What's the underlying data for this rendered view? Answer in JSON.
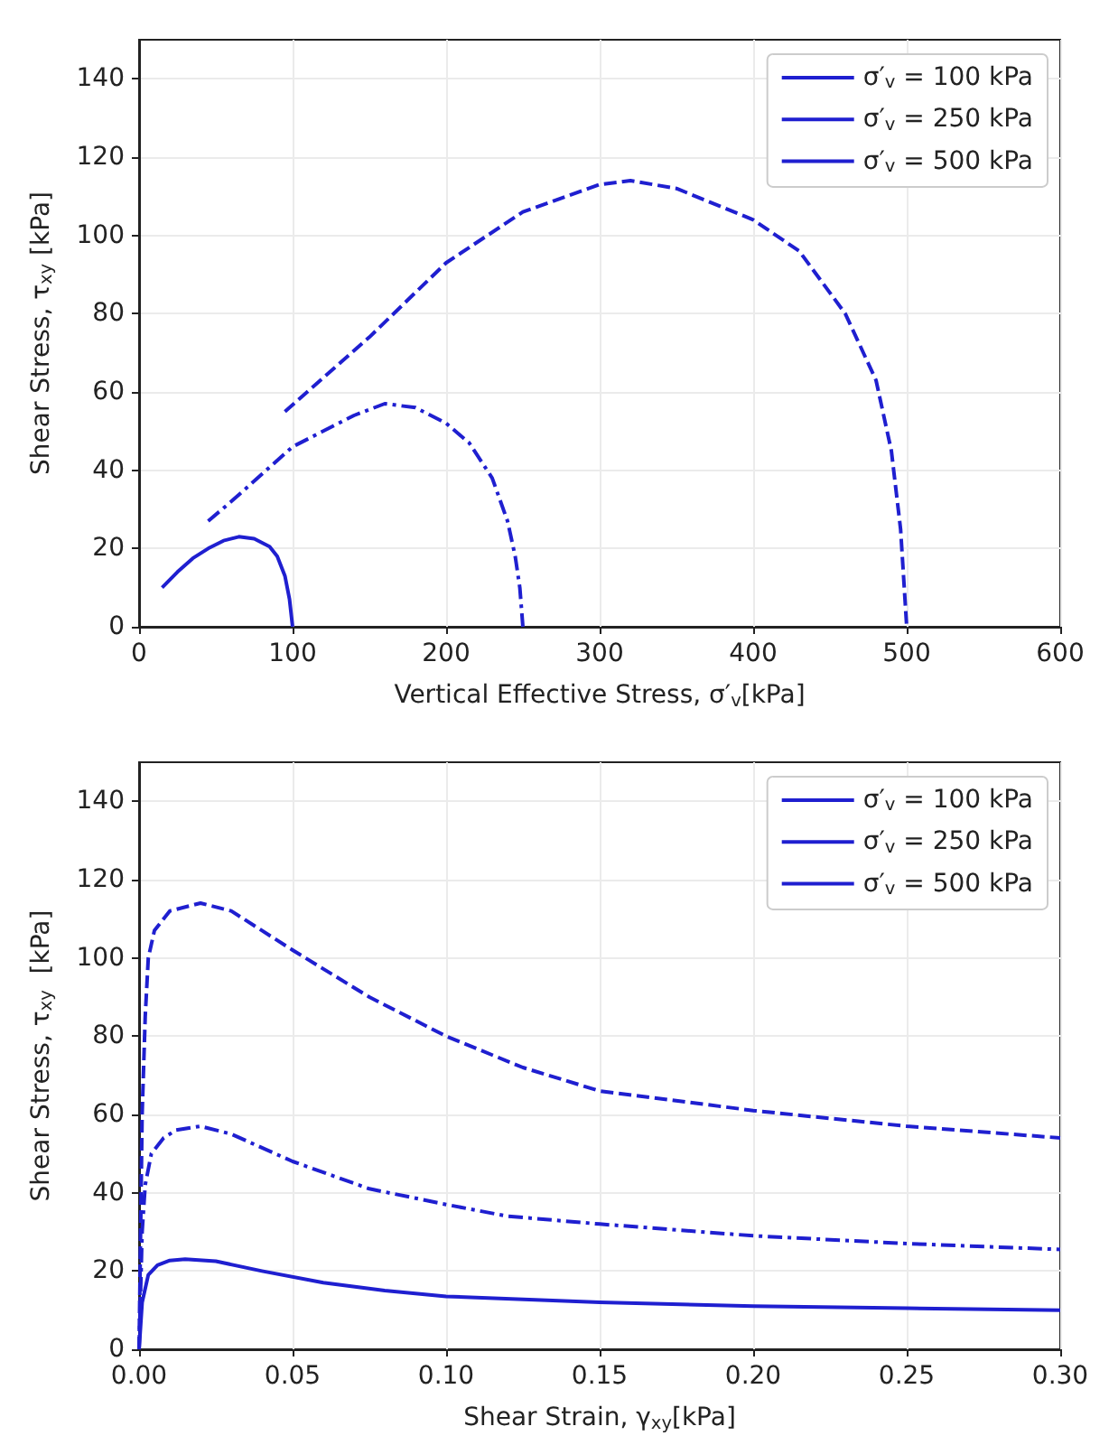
{
  "chart_data": [
    {
      "type": "line",
      "xlabel": "Vertical Effective Stress, σ′$_{v}$[kPa]",
      "ylabel": "Shear Stress, τ$_{xy}$ [kPa]",
      "xlim": [
        0,
        600
      ],
      "xticks": [
        0,
        100,
        200,
        300,
        400,
        500,
        600
      ],
      "ylim": [
        0,
        150
      ],
      "yticks": [
        0,
        20,
        40,
        60,
        80,
        100,
        120,
        140
      ],
      "grid": true,
      "legend": "top right",
      "series": [
        {
          "name": "σ′$_{v}$ = 100 kPa",
          "color": "#1f1fd0",
          "line_style": "solid",
          "x": [
            15,
            25,
            35,
            45,
            55,
            65,
            75,
            85,
            90,
            95,
            98,
            100
          ],
          "values": [
            10,
            14,
            17.5,
            20,
            22,
            23,
            22.5,
            20.5,
            18,
            13,
            7,
            0
          ]
        },
        {
          "name": "σ′$_{v}$ = 250 kPa",
          "color": "#1f1fd0",
          "line_style": "dashdot",
          "x": [
            45,
            60,
            80,
            100,
            120,
            140,
            160,
            180,
            200,
            215,
            230,
            240,
            245,
            248,
            250
          ],
          "values": [
            27,
            32,
            39,
            46,
            50,
            54,
            57,
            56,
            52,
            47,
            38,
            27,
            18,
            10,
            0
          ]
        },
        {
          "name": "σ′$_{v}$ = 500 kPa",
          "color": "#1f1fd0",
          "line_style": "dashed",
          "x": [
            95,
            150,
            200,
            250,
            300,
            320,
            350,
            400,
            430,
            460,
            480,
            490,
            496,
            500
          ],
          "values": [
            55,
            74,
            93,
            106,
            113,
            114,
            112,
            104,
            96,
            80,
            63,
            45,
            25,
            0
          ]
        }
      ]
    },
    {
      "type": "line",
      "xlabel": "Shear Strain, γ$_{xy}$[kPa]",
      "ylabel": "Shear Stress, τ$_{xy}$  [kPa]",
      "xlim": [
        0,
        0.3
      ],
      "xticks": [
        {
          "value": 0,
          "label": "0.00"
        },
        0.05,
        {
          "value": 0.1,
          "label": "0.10"
        },
        0.15,
        {
          "value": 0.2,
          "label": "0.20"
        },
        0.25,
        {
          "value": 0.3,
          "label": "0.30"
        }
      ],
      "ylim": [
        0,
        150
      ],
      "yticks": [
        0,
        20,
        40,
        60,
        80,
        100,
        120,
        140
      ],
      "grid": true,
      "legend": "top right",
      "series": [
        {
          "name": "σ′$_{v}$ = 100 kPa",
          "color": "#1f1fd0",
          "line_style": "solid",
          "x": [
            0,
            0.001,
            0.003,
            0.006,
            0.01,
            0.015,
            0.025,
            0.04,
            0.06,
            0.08,
            0.1,
            0.15,
            0.2,
            0.25,
            0.3
          ],
          "values": [
            0,
            12,
            19,
            21.5,
            22.7,
            23,
            22.5,
            20,
            17,
            15,
            13.5,
            12,
            11,
            10.5,
            10
          ]
        },
        {
          "name": "σ′$_{v}$ = 250 kPa",
          "color": "#1f1fd0",
          "line_style": "dashdot",
          "x": [
            0,
            0.001,
            0.002,
            0.004,
            0.008,
            0.012,
            0.02,
            0.03,
            0.05,
            0.075,
            0.1,
            0.12,
            0.15,
            0.2,
            0.25,
            0.3
          ],
          "values": [
            0,
            30,
            42,
            50,
            54,
            56,
            57,
            55,
            48,
            41,
            37,
            34,
            32,
            29,
            27,
            25.5
          ]
        },
        {
          "name": "σ′$_{v}$ = 500 kPa",
          "color": "#1f1fd0",
          "line_style": "dashed",
          "x": [
            0,
            0.001,
            0.002,
            0.003,
            0.005,
            0.01,
            0.02,
            0.03,
            0.05,
            0.075,
            0.1,
            0.125,
            0.15,
            0.2,
            0.25,
            0.3
          ],
          "values": [
            0,
            60,
            85,
            100,
            107,
            112,
            114,
            112,
            102,
            90,
            80,
            72,
            66,
            61,
            57,
            54
          ]
        }
      ]
    }
  ]
}
